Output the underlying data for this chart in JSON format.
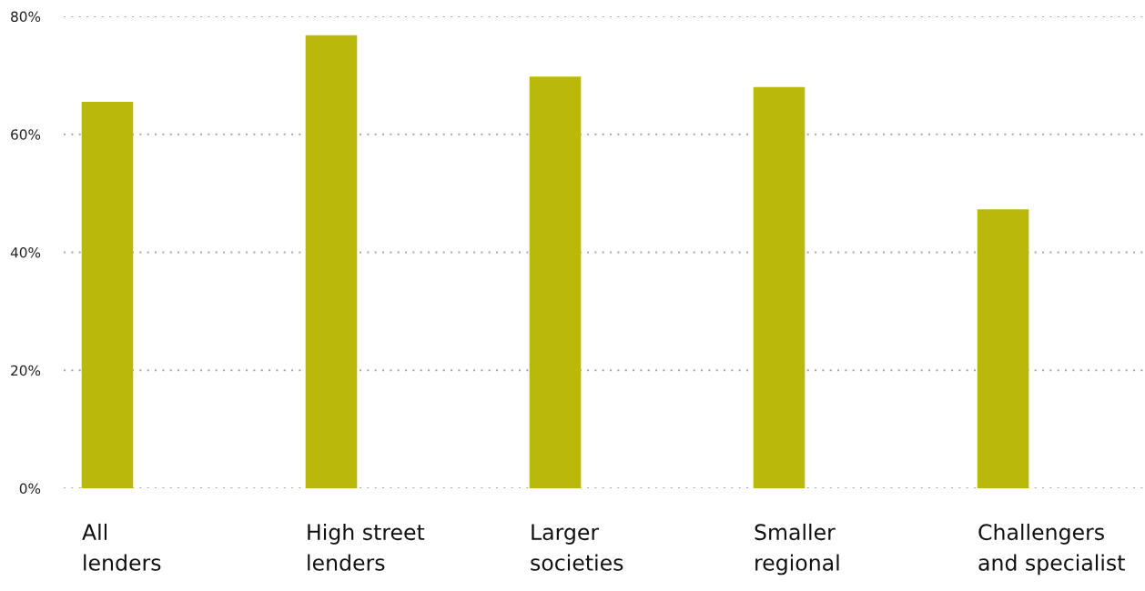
{
  "chart_data": {
    "type": "bar",
    "categories": [
      "All\nlenders",
      "High street\nlenders",
      "Larger\nsocieties",
      "Smaller\nregional",
      "Challengers\nand specialist"
    ],
    "values": [
      65.5,
      76.8,
      69.8,
      68.0,
      47.3
    ],
    "color": "#bab80a",
    "ylim": [
      0,
      80
    ],
    "yticks": [
      {
        "value": 0,
        "label": "0%"
      },
      {
        "value": 20,
        "label": "20%"
      },
      {
        "value": 40,
        "label": "40%"
      },
      {
        "value": 60,
        "label": "60%"
      },
      {
        "value": 80,
        "label": "80%"
      }
    ],
    "grid": "y"
  }
}
